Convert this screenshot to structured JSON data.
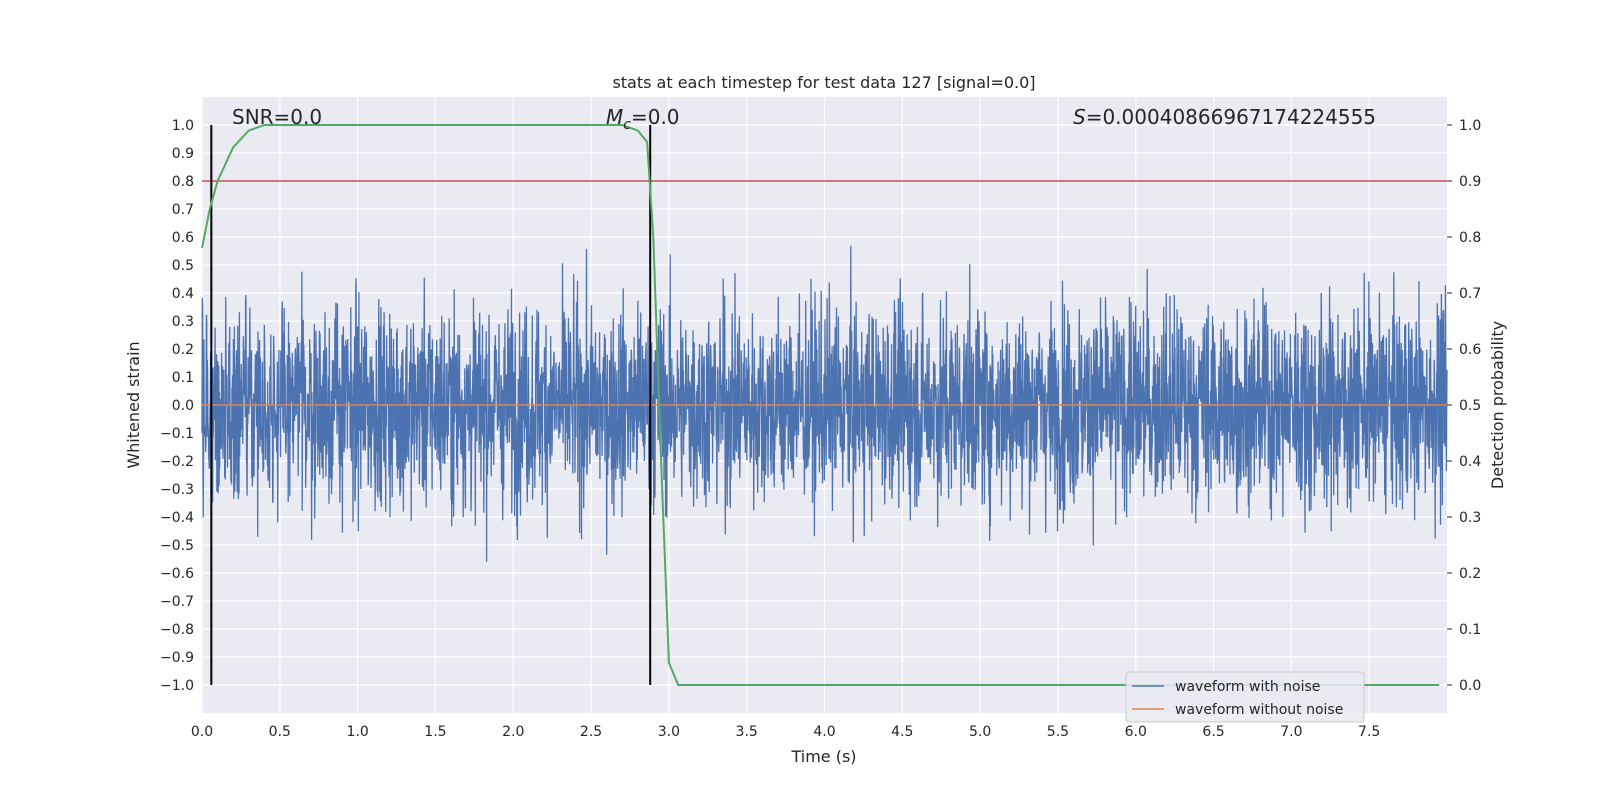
{
  "chart_data": {
    "type": "line",
    "title": "stats at each timestep for test data 127 [signal=0.0]",
    "xlabel": "Time (s)",
    "ylabel": "Whitened strain",
    "y2label": "Detection probability",
    "xlim": [
      0.0,
      8.0
    ],
    "ylim": [
      -1.1,
      1.1
    ],
    "y2lim": [
      -0.05,
      1.05
    ],
    "x_ticks": [
      0.0,
      0.5,
      1.0,
      1.5,
      2.0,
      2.5,
      3.0,
      3.5,
      4.0,
      4.5,
      5.0,
      5.5,
      6.0,
      6.5,
      7.0,
      7.5
    ],
    "x_tick_labels": [
      "0.0",
      "0.5",
      "1.0",
      "1.5",
      "2.0",
      "2.5",
      "3.0",
      "3.5",
      "4.0",
      "4.5",
      "5.0",
      "5.5",
      "6.0",
      "6.5",
      "7.0",
      "7.5"
    ],
    "y_ticks": [
      1.0,
      0.9,
      0.8,
      0.7,
      0.6,
      0.5,
      0.4,
      0.3,
      0.2,
      0.1,
      0.0,
      -0.1,
      -0.2,
      -0.3,
      -0.4,
      -0.5,
      -0.6,
      -0.7,
      -0.8,
      -0.9,
      -1.0
    ],
    "y_tick_labels": [
      "1.0",
      "0.9",
      "0.8",
      "0.7",
      "0.6",
      "0.5",
      "0.4",
      "0.3",
      "0.2",
      "0.1",
      "0.0",
      "−0.1",
      "−0.2",
      "−0.3",
      "−0.4",
      "−0.5",
      "−0.6",
      "−0.7",
      "−0.8",
      "−0.9",
      "−1.0"
    ],
    "y2_ticks": [
      1.0,
      0.9,
      0.8,
      0.7,
      0.6,
      0.5,
      0.4,
      0.3,
      0.2,
      0.1,
      0.0
    ],
    "y2_tick_labels": [
      "1.0",
      "0.9",
      "0.8",
      "0.7",
      "0.6",
      "0.5",
      "0.4",
      "0.3",
      "0.2",
      "0.1",
      "0.0"
    ],
    "grid": true,
    "legend_location": "lower right",
    "annotations": {
      "snr": "SNR=0.0",
      "mc_symbol": "M",
      "mc_sub": "c",
      "mc_value": "=0.0",
      "s_symbol": "S",
      "s_value": "=0.00040866967174224555"
    },
    "series": [
      {
        "name": "waveform with noise",
        "color": "#4c72b0",
        "kind": "noise",
        "x_range": [
          0.0,
          8.0
        ],
        "typical_amplitude": 0.4,
        "max_abs": 1.0
      },
      {
        "name": "waveform without noise",
        "color": "#dd8452",
        "kind": "constant",
        "x": [
          0.0,
          8.0
        ],
        "y": [
          0.0,
          0.0
        ]
      },
      {
        "name": "",
        "color": "#55a868",
        "axis": "right",
        "kind": "detection_probability",
        "x": [
          0.0,
          0.05,
          0.1,
          0.2,
          0.3,
          0.4,
          0.5,
          1.0,
          1.5,
          2.0,
          2.5,
          2.7,
          2.8,
          2.86,
          2.9,
          2.95,
          3.0,
          3.06,
          3.1,
          4.0,
          5.0,
          6.0,
          7.0,
          7.95
        ],
        "y": [
          0.78,
          0.85,
          0.9,
          0.96,
          0.99,
          1.0,
          1.0,
          1.0,
          1.0,
          1.0,
          1.0,
          1.0,
          0.99,
          0.97,
          0.8,
          0.4,
          0.04,
          0.0,
          0.0,
          0.0,
          0.0,
          0.0,
          0.0,
          0.0
        ]
      }
    ],
    "hlines": [
      {
        "axis": "right",
        "y": 0.9,
        "color": "#c44e52"
      }
    ],
    "vlines": [
      {
        "x": 0.06,
        "y2_range": [
          0.0,
          1.0
        ],
        "color": "#000000"
      },
      {
        "x": 2.88,
        "y2_range": [
          0.0,
          1.0
        ],
        "color": "#000000"
      }
    ]
  }
}
